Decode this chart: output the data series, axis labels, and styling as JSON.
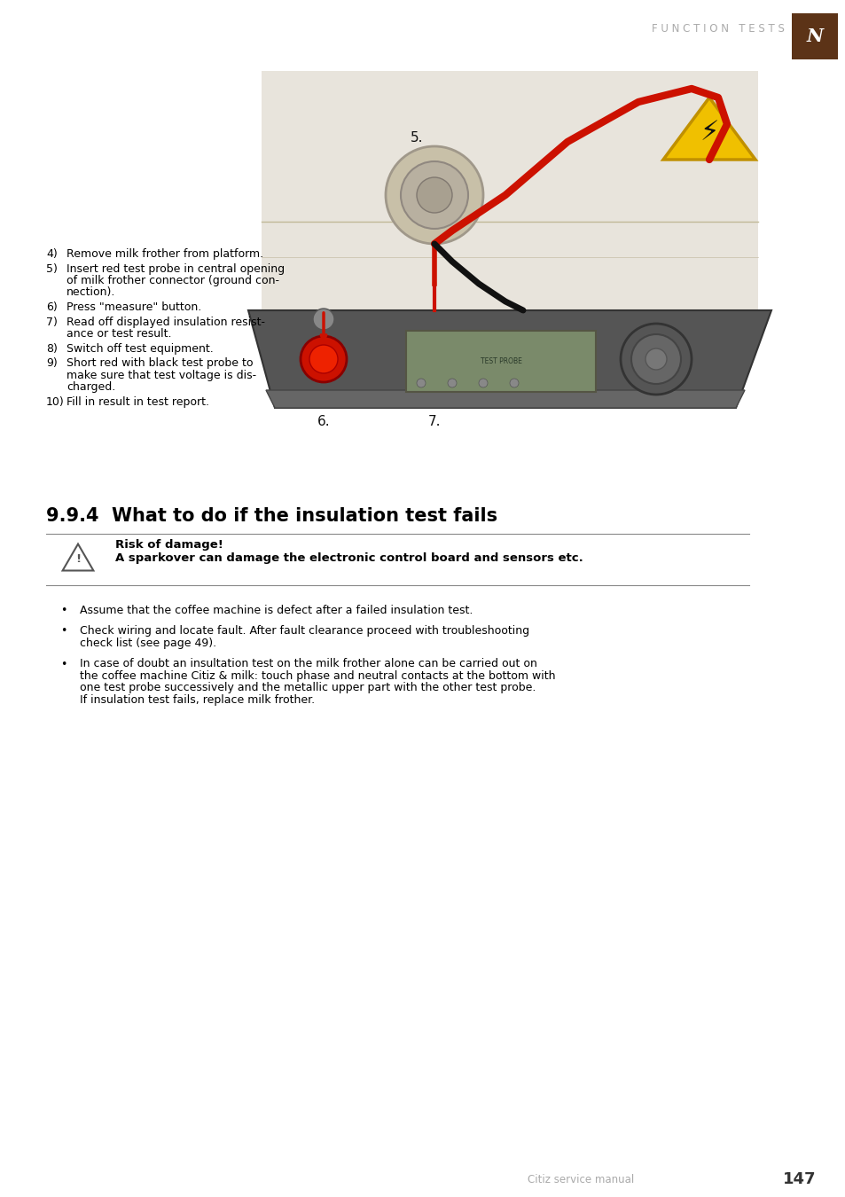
{
  "bg_color": "#ffffff",
  "header_text": "F U N C T I O N   T E S T S",
  "header_color": "#aaaaaa",
  "header_fontsize": 8.5,
  "nespresso_box_color": "#5c3317",
  "page_number": "147",
  "footer_text": "Citiz service manual",
  "section_title": "9.9.4  What to do if the insulation test fails",
  "section_title_fontsize": 15,
  "warning_title": "Risk of damage!",
  "warning_body": "A sparkover can damage the electronic control board and sensors etc.",
  "bullet_points": [
    "Assume that the coffee machine is defect after a failed insulation test.",
    "Check wiring and locate fault. After fault clearance proceed with troubleshooting\ncheck list (see page 49).",
    "In case of doubt an insultation test on the milk frother alone can be carried out on\nthe coffee machine Citiz & milk: touch phase and neutral contacts at the bottom with\none test probe successively and the metallic upper part with the other test probe.\nIf insulation test fails, replace milk frother."
  ],
  "step_numbers": [
    "4)",
    "5)",
    "6)",
    "7)",
    "8)",
    "9)",
    "10)"
  ],
  "step_texts": [
    "Remove milk frother from platform.",
    "Insert red test probe in central opening\nof milk frother connector (ground con-\nnection).",
    "Press \"measure\" button.",
    "Read off displayed insulation resist-\nance or test result.",
    "Switch off test equipment.",
    "Short red with black test probe to\nmake sure that test voltage is dis-\ncharged.",
    "Fill in result in test report."
  ]
}
